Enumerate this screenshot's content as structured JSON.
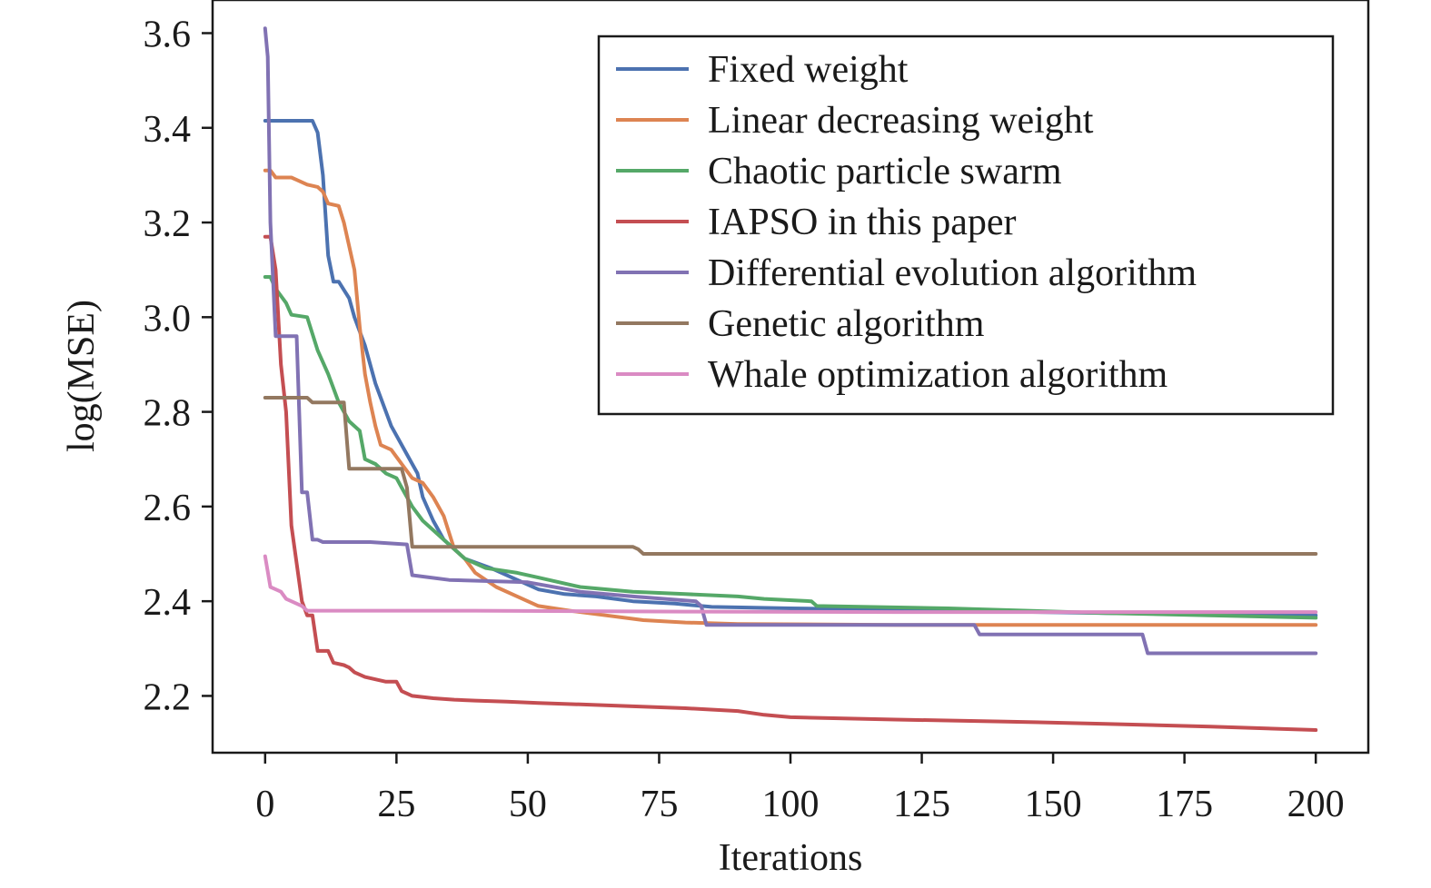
{
  "chart_data": {
    "type": "line",
    "xlabel": "Iterations",
    "ylabel": "log(MSE)",
    "xlim": [
      -10,
      210
    ],
    "ylim": [
      2.08,
      3.67
    ],
    "xticks": [
      0,
      25,
      50,
      75,
      100,
      125,
      150,
      175,
      200
    ],
    "yticks": [
      2.2,
      2.4,
      2.6,
      2.8,
      3.0,
      3.2,
      3.4,
      3.6
    ],
    "xtick_labels": [
      "0",
      "25",
      "50",
      "75",
      "100",
      "125",
      "150",
      "175",
      "200"
    ],
    "ytick_labels": [
      "2.2",
      "2.4",
      "2.6",
      "2.8",
      "3.0",
      "3.2",
      "3.4",
      "3.6"
    ],
    "grid": false,
    "legend_position": "top-right",
    "series": [
      {
        "name": "Fixed weight",
        "color": "#4c72b0",
        "x": [
          0,
          9,
          10,
          11,
          12,
          13,
          14,
          16,
          17,
          19,
          21,
          24,
          27,
          29,
          30,
          32,
          34,
          38,
          43,
          48,
          52,
          57,
          63,
          70,
          78,
          85,
          100,
          130,
          160,
          200
        ],
        "y": [
          3.415,
          3.415,
          3.39,
          3.3,
          3.13,
          3.075,
          3.075,
          3.04,
          3.0,
          2.94,
          2.86,
          2.77,
          2.71,
          2.67,
          2.62,
          2.57,
          2.53,
          2.49,
          2.47,
          2.445,
          2.425,
          2.415,
          2.41,
          2.4,
          2.395,
          2.388,
          2.385,
          2.38,
          2.375,
          2.37
        ]
      },
      {
        "name": "Linear decreasing weight",
        "color": "#dd8452",
        "x": [
          0,
          1,
          2,
          5,
          6,
          8,
          10,
          11,
          12,
          14,
          15,
          17,
          18,
          19,
          20,
          21,
          22,
          24,
          26,
          28,
          30,
          32,
          34,
          36,
          38,
          40,
          44,
          48,
          52,
          58,
          65,
          72,
          80,
          90,
          120,
          160,
          200
        ],
        "y": [
          3.31,
          3.31,
          3.295,
          3.295,
          3.29,
          3.28,
          3.275,
          3.265,
          3.24,
          3.235,
          3.2,
          3.1,
          2.98,
          2.88,
          2.82,
          2.77,
          2.73,
          2.72,
          2.69,
          2.66,
          2.65,
          2.62,
          2.58,
          2.51,
          2.49,
          2.46,
          2.43,
          2.41,
          2.39,
          2.38,
          2.37,
          2.36,
          2.355,
          2.352,
          2.35,
          2.35,
          2.35
        ]
      },
      {
        "name": "Chaotic particle swarm",
        "color": "#55a868",
        "x": [
          0,
          1,
          2,
          4,
          5,
          8,
          10,
          12,
          14,
          16,
          18,
          19,
          21,
          23,
          25,
          26,
          28,
          30,
          32,
          34,
          36,
          38,
          42,
          48,
          52,
          60,
          70,
          80,
          90,
          95,
          104,
          105,
          130,
          160,
          200
        ],
        "y": [
          3.085,
          3.085,
          3.06,
          3.03,
          3.005,
          3.0,
          2.93,
          2.88,
          2.82,
          2.78,
          2.76,
          2.7,
          2.69,
          2.67,
          2.66,
          2.64,
          2.6,
          2.57,
          2.55,
          2.53,
          2.51,
          2.49,
          2.47,
          2.46,
          2.45,
          2.43,
          2.42,
          2.415,
          2.41,
          2.405,
          2.4,
          2.39,
          2.385,
          2.375,
          2.365
        ]
      },
      {
        "name": "IAPSO in this paper",
        "color": "#c44e52",
        "x": [
          0,
          1,
          2,
          3,
          4,
          5,
          6,
          7,
          8,
          9,
          10,
          12,
          13,
          15,
          16,
          17,
          19,
          21,
          23,
          25,
          26,
          28,
          32,
          36,
          40,
          46,
          52,
          60,
          70,
          80,
          90,
          95,
          100,
          120,
          140,
          160,
          180,
          200
        ],
        "y": [
          3.17,
          3.17,
          3.1,
          2.9,
          2.8,
          2.56,
          2.48,
          2.4,
          2.37,
          2.37,
          2.295,
          2.295,
          2.27,
          2.265,
          2.26,
          2.25,
          2.24,
          2.235,
          2.23,
          2.23,
          2.21,
          2.2,
          2.195,
          2.192,
          2.19,
          2.188,
          2.185,
          2.182,
          2.178,
          2.174,
          2.168,
          2.16,
          2.155,
          2.15,
          2.146,
          2.141,
          2.135,
          2.128
        ]
      },
      {
        "name": "Differential evolution algorithm",
        "color": "#8172b3",
        "x": [
          0,
          0.5,
          1,
          2,
          3,
          6,
          7,
          8,
          9,
          10,
          11,
          20,
          27,
          28,
          35,
          50,
          60,
          70,
          82,
          83,
          84,
          135,
          136,
          167,
          168,
          200
        ],
        "y": [
          3.61,
          3.55,
          3.2,
          2.96,
          2.96,
          2.96,
          2.63,
          2.63,
          2.53,
          2.53,
          2.525,
          2.525,
          2.52,
          2.455,
          2.445,
          2.44,
          2.42,
          2.41,
          2.4,
          2.39,
          2.35,
          2.35,
          2.33,
          2.33,
          2.29,
          2.29
        ]
      },
      {
        "name": "Genetic algorithm",
        "color": "#937860",
        "x": [
          0,
          8,
          9,
          15,
          16,
          26,
          27,
          28,
          40,
          70,
          71,
          72,
          120,
          200
        ],
        "y": [
          2.83,
          2.83,
          2.82,
          2.82,
          2.68,
          2.68,
          2.64,
          2.515,
          2.515,
          2.515,
          2.51,
          2.5,
          2.5,
          2.5
        ]
      },
      {
        "name": "Whale optimization algorithm",
        "color": "#da8bc3",
        "x": [
          0,
          1,
          2,
          3,
          4,
          6,
          7,
          8,
          10,
          20,
          40,
          80,
          120,
          160,
          200
        ],
        "y": [
          2.495,
          2.43,
          2.425,
          2.42,
          2.405,
          2.395,
          2.39,
          2.38,
          2.38,
          2.38,
          2.38,
          2.378,
          2.377,
          2.377,
          2.377
        ]
      }
    ]
  }
}
